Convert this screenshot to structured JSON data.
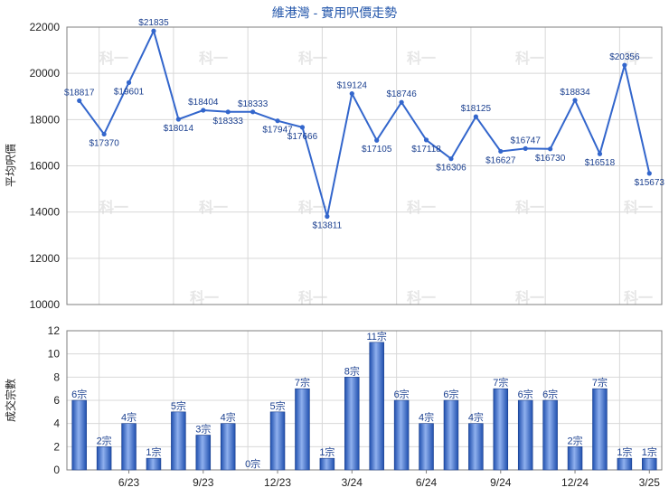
{
  "chart_data": [
    {
      "type": "line",
      "title": "維港灣 - 實用呎價走勢",
      "ylabel": "平均呎價",
      "ylim": [
        10000,
        22000
      ],
      "yticks": [
        10000,
        12000,
        14000,
        16000,
        18000,
        20000,
        22000
      ],
      "grid": true,
      "color": "#3366cc",
      "values": [
        18817,
        17370,
        19601,
        21835,
        18014,
        18404,
        18333,
        18333,
        17947,
        17666,
        13811,
        19124,
        17105,
        18746,
        17118,
        16306,
        18125,
        16627,
        16747,
        16730,
        18834,
        16518,
        20356,
        15673
      ],
      "labels": [
        "$18817",
        "$17370",
        "$19601",
        "$21835",
        "$18014",
        "$18404",
        "$18333",
        "$18333",
        "$17947",
        "$17666",
        "$13811",
        "$19124",
        "$17105",
        "$18746",
        "$17118",
        "$16306",
        "$18125",
        "$16627",
        "$16747",
        "$16730",
        "$18834",
        "$16518",
        "$20356",
        "$15673"
      ]
    },
    {
      "type": "bar",
      "ylabel": "成交宗數",
      "ylim": [
        0,
        12
      ],
      "yticks": [
        0,
        2,
        4,
        6,
        8,
        10,
        12
      ],
      "grid": true,
      "color": "#3366cc",
      "categories": [
        "6/23",
        "9/23",
        "12/23",
        "3/24",
        "6/24",
        "9/24",
        "12/24",
        "3/25"
      ],
      "values": [
        6,
        2,
        4,
        1,
        5,
        3,
        4,
        0,
        5,
        7,
        1,
        8,
        11,
        6,
        4,
        6,
        4,
        7,
        6,
        6,
        2,
        7,
        1,
        1
      ],
      "labels": [
        "6宗",
        "2宗",
        "4宗",
        "1宗",
        "5宗",
        "3宗",
        "4宗",
        "0宗",
        "5宗",
        "7宗",
        "1宗",
        "8宗",
        "11宗",
        "6宗",
        "4宗",
        "6宗",
        "4宗",
        "7宗",
        "6宗",
        "6宗",
        "2宗",
        "7宗",
        "1宗",
        "1宗"
      ]
    }
  ]
}
